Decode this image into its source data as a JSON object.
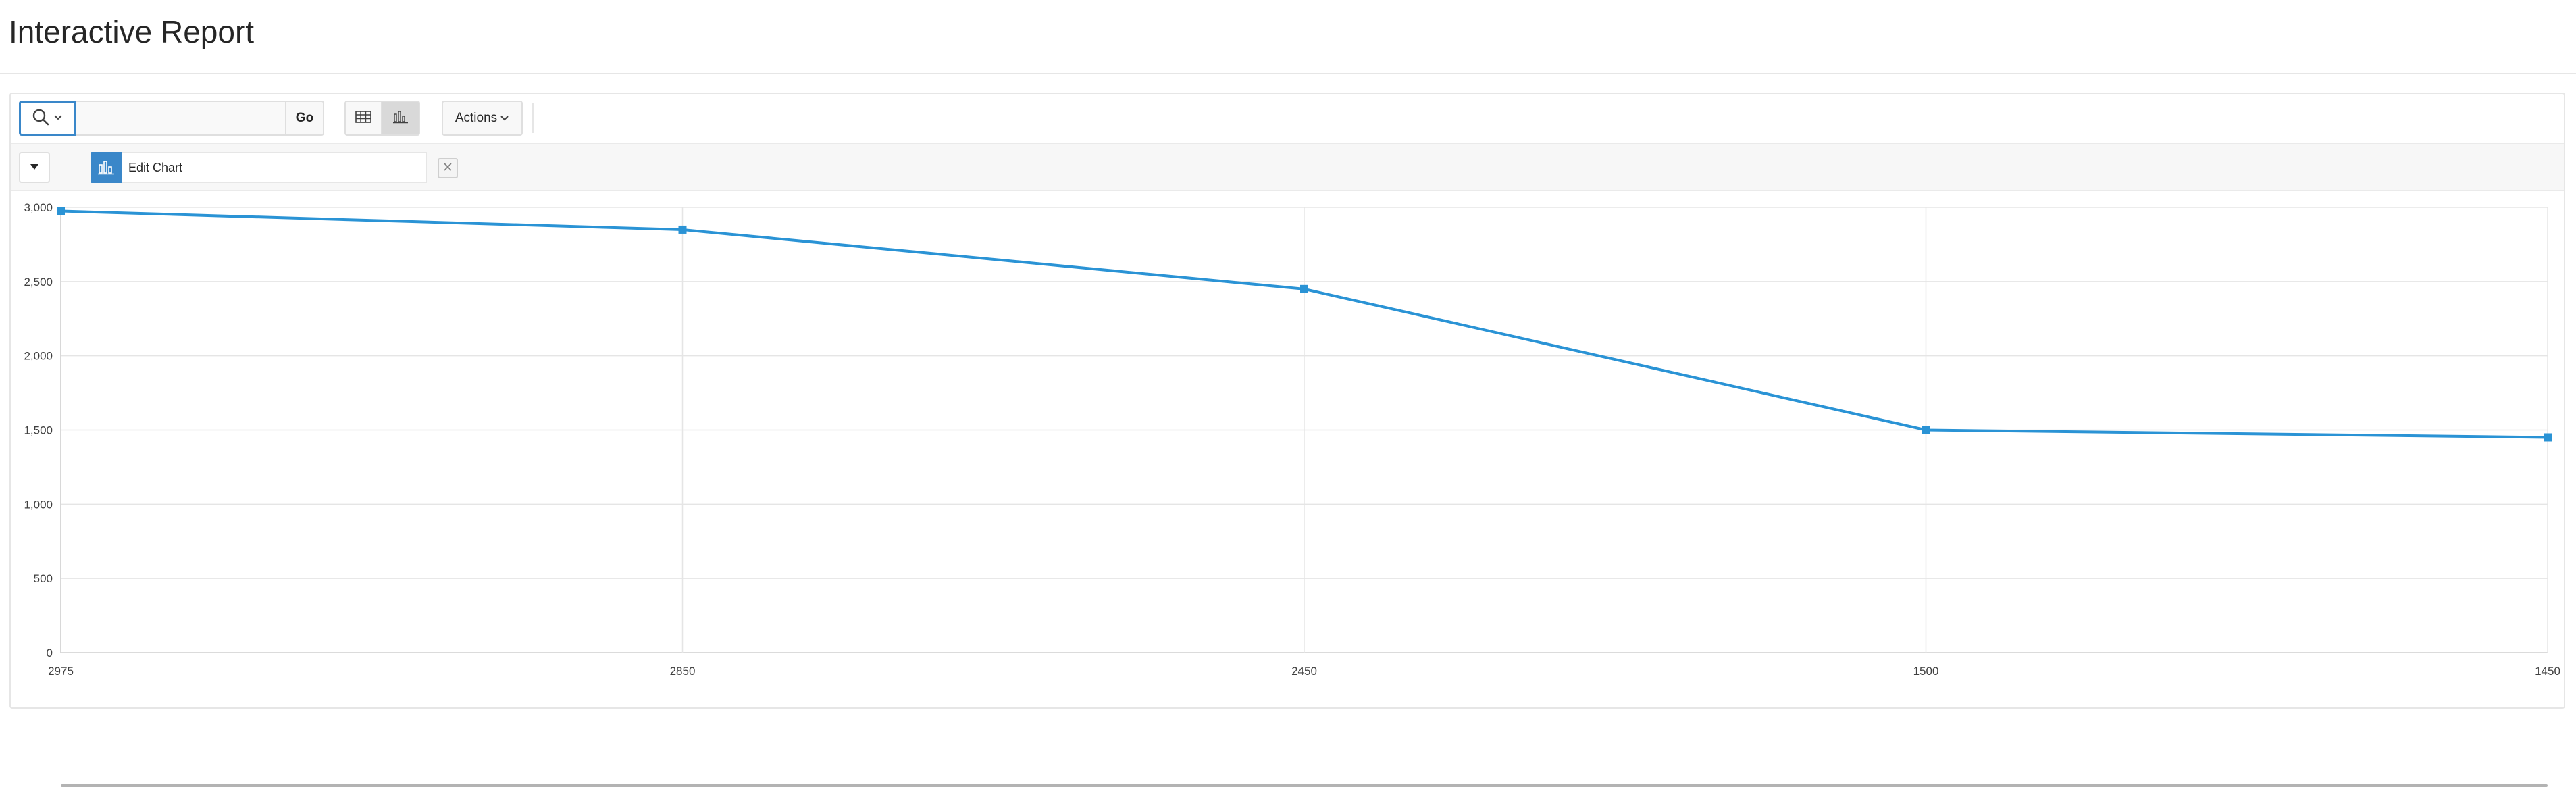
{
  "page": {
    "title": "Interactive Report"
  },
  "toolbar": {
    "search_icon": "search-icon",
    "search_value": "",
    "search_placeholder": "",
    "go_label": "Go",
    "view_grid_icon": "grid-view-icon",
    "view_chart_icon": "chart-view-icon",
    "actions_label": "Actions"
  },
  "filter_bar": {
    "collapse_icon": "caret-down-icon",
    "edit_chart_label": "Edit Chart",
    "remove_icon": "close-icon"
  },
  "colors": {
    "accent": "#3a87c9",
    "series": "#2a93d5",
    "grid": "#e5e5e5"
  },
  "chart_data": {
    "type": "line",
    "categories": [
      "2975",
      "2850",
      "2450",
      "1500",
      "1450"
    ],
    "series": [
      {
        "values": [
          2975,
          2850,
          2450,
          1500,
          1450
        ]
      }
    ],
    "y_ticks": [
      "0",
      "500",
      "1,000",
      "1,500",
      "2,000",
      "2,500",
      "3,000"
    ],
    "y_tick_values": [
      0,
      500,
      1000,
      1500,
      2000,
      2500,
      3000
    ],
    "ylim": [
      0,
      3000
    ],
    "markers": "square",
    "grid": true
  }
}
